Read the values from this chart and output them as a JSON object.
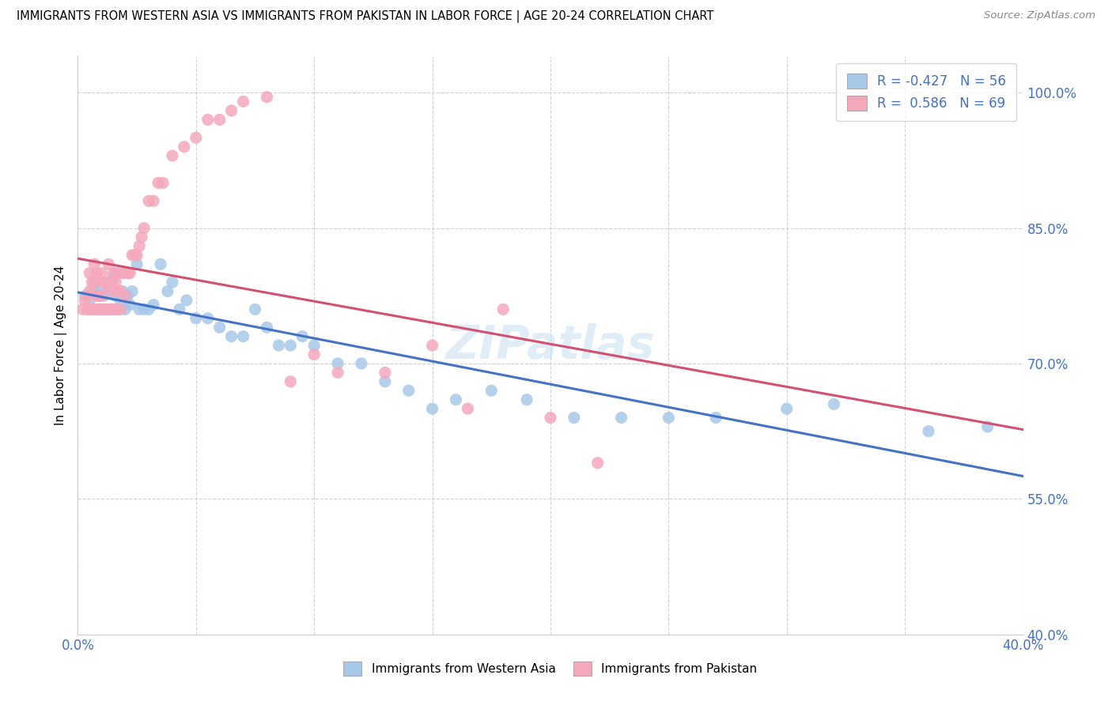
{
  "title": "IMMIGRANTS FROM WESTERN ASIA VS IMMIGRANTS FROM PAKISTAN IN LABOR FORCE | AGE 20-24 CORRELATION CHART",
  "source": "Source: ZipAtlas.com",
  "ylabel": "In Labor Force | Age 20-24",
  "xlim": [
    0.0,
    0.4
  ],
  "ylim": [
    0.4,
    1.04
  ],
  "yticks": [
    0.4,
    0.55,
    0.7,
    0.85,
    1.0
  ],
  "ytick_labels": [
    "40.0%",
    "55.0%",
    "70.0%",
    "85.0%",
    "100.0%"
  ],
  "xticks": [
    0.0,
    0.05,
    0.1,
    0.15,
    0.2,
    0.25,
    0.3,
    0.35,
    0.4
  ],
  "xtick_labels": [
    "0.0%",
    "",
    "",
    "",
    "",
    "",
    "",
    "",
    "40.0%"
  ],
  "blue_R": -0.427,
  "blue_N": 56,
  "pink_R": 0.586,
  "pink_N": 69,
  "blue_color": "#a8c8e8",
  "pink_color": "#f4a8bc",
  "blue_line_color": "#4472c4",
  "pink_line_color": "#d45070",
  "axis_label_color": "#4472c4",
  "blue_scatter_x": [
    0.003,
    0.005,
    0.007,
    0.009,
    0.01,
    0.011,
    0.012,
    0.013,
    0.014,
    0.015,
    0.016,
    0.016,
    0.017,
    0.018,
    0.019,
    0.02,
    0.021,
    0.022,
    0.023,
    0.025,
    0.026,
    0.028,
    0.03,
    0.032,
    0.035,
    0.038,
    0.04,
    0.043,
    0.046,
    0.05,
    0.055,
    0.06,
    0.065,
    0.07,
    0.075,
    0.08,
    0.085,
    0.09,
    0.095,
    0.1,
    0.11,
    0.12,
    0.13,
    0.14,
    0.15,
    0.16,
    0.175,
    0.19,
    0.21,
    0.23,
    0.25,
    0.27,
    0.3,
    0.32,
    0.36,
    0.385
  ],
  "blue_scatter_y": [
    0.775,
    0.77,
    0.78,
    0.76,
    0.785,
    0.775,
    0.76,
    0.78,
    0.79,
    0.795,
    0.775,
    0.8,
    0.76,
    0.77,
    0.78,
    0.76,
    0.775,
    0.765,
    0.78,
    0.81,
    0.76,
    0.76,
    0.76,
    0.765,
    0.81,
    0.78,
    0.79,
    0.76,
    0.77,
    0.75,
    0.75,
    0.74,
    0.73,
    0.73,
    0.76,
    0.74,
    0.72,
    0.72,
    0.73,
    0.72,
    0.7,
    0.7,
    0.68,
    0.67,
    0.65,
    0.66,
    0.67,
    0.66,
    0.64,
    0.64,
    0.64,
    0.64,
    0.65,
    0.655,
    0.625,
    0.63
  ],
  "pink_scatter_x": [
    0.002,
    0.003,
    0.004,
    0.004,
    0.005,
    0.005,
    0.005,
    0.006,
    0.006,
    0.007,
    0.007,
    0.007,
    0.008,
    0.008,
    0.008,
    0.009,
    0.009,
    0.01,
    0.01,
    0.01,
    0.011,
    0.011,
    0.012,
    0.012,
    0.013,
    0.013,
    0.013,
    0.014,
    0.014,
    0.015,
    0.015,
    0.015,
    0.016,
    0.016,
    0.017,
    0.017,
    0.018,
    0.018,
    0.019,
    0.02,
    0.021,
    0.022,
    0.023,
    0.024,
    0.025,
    0.026,
    0.027,
    0.028,
    0.03,
    0.032,
    0.034,
    0.036,
    0.04,
    0.045,
    0.05,
    0.055,
    0.06,
    0.065,
    0.07,
    0.08,
    0.09,
    0.1,
    0.11,
    0.13,
    0.15,
    0.165,
    0.18,
    0.2,
    0.22
  ],
  "pink_scatter_y": [
    0.76,
    0.77,
    0.76,
    0.775,
    0.76,
    0.78,
    0.8,
    0.76,
    0.79,
    0.76,
    0.79,
    0.81,
    0.76,
    0.775,
    0.8,
    0.76,
    0.775,
    0.76,
    0.775,
    0.8,
    0.76,
    0.79,
    0.76,
    0.79,
    0.76,
    0.785,
    0.81,
    0.76,
    0.79,
    0.76,
    0.78,
    0.8,
    0.76,
    0.79,
    0.78,
    0.8,
    0.76,
    0.78,
    0.8,
    0.775,
    0.8,
    0.8,
    0.82,
    0.82,
    0.82,
    0.83,
    0.84,
    0.85,
    0.88,
    0.88,
    0.9,
    0.9,
    0.93,
    0.94,
    0.95,
    0.97,
    0.97,
    0.98,
    0.99,
    0.995,
    0.68,
    0.71,
    0.69,
    0.69,
    0.72,
    0.65,
    0.76,
    0.64,
    0.59
  ]
}
